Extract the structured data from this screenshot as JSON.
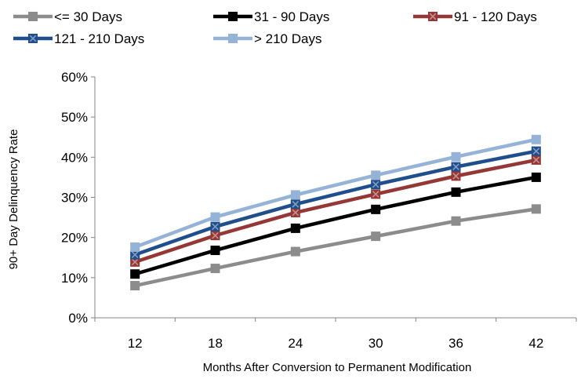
{
  "chart_data": {
    "type": "line",
    "title": "",
    "xlabel": "Months After Conversion to Permanent Modification",
    "ylabel": "90+ Day Delinquency Rate",
    "categories": [
      "12",
      "18",
      "24",
      "30",
      "36",
      "42"
    ],
    "ylim": [
      0,
      60
    ],
    "y_ticks": [
      "0%",
      "10%",
      "20%",
      "30%",
      "40%",
      "50%",
      "60%"
    ],
    "y_unit": "%",
    "grid": false,
    "legend_position": "top",
    "series": [
      {
        "name": "<= 30 Days",
        "color": "#8c8c8c",
        "marker": "square",
        "values": [
          8.0,
          12.3,
          16.5,
          20.3,
          24.1,
          27.1
        ]
      },
      {
        "name": "31 - 90 Days",
        "color": "#000000",
        "marker": "square",
        "values": [
          10.9,
          16.8,
          22.3,
          27.0,
          31.3,
          35.0
        ]
      },
      {
        "name": "91 - 120 Days",
        "color": "#953735",
        "marker": "x-square",
        "values": [
          13.9,
          20.5,
          26.2,
          30.8,
          35.3,
          39.3
        ]
      },
      {
        "name": "121 - 210 Days",
        "color": "#1f4e8c",
        "marker": "x-square",
        "values": [
          15.7,
          22.7,
          28.3,
          33.2,
          37.6,
          41.5
        ]
      },
      {
        "name": "> 210 Days",
        "color": "#95b3d7",
        "marker": "square",
        "values": [
          17.6,
          25.1,
          30.6,
          35.5,
          40.1,
          44.4
        ]
      }
    ]
  }
}
